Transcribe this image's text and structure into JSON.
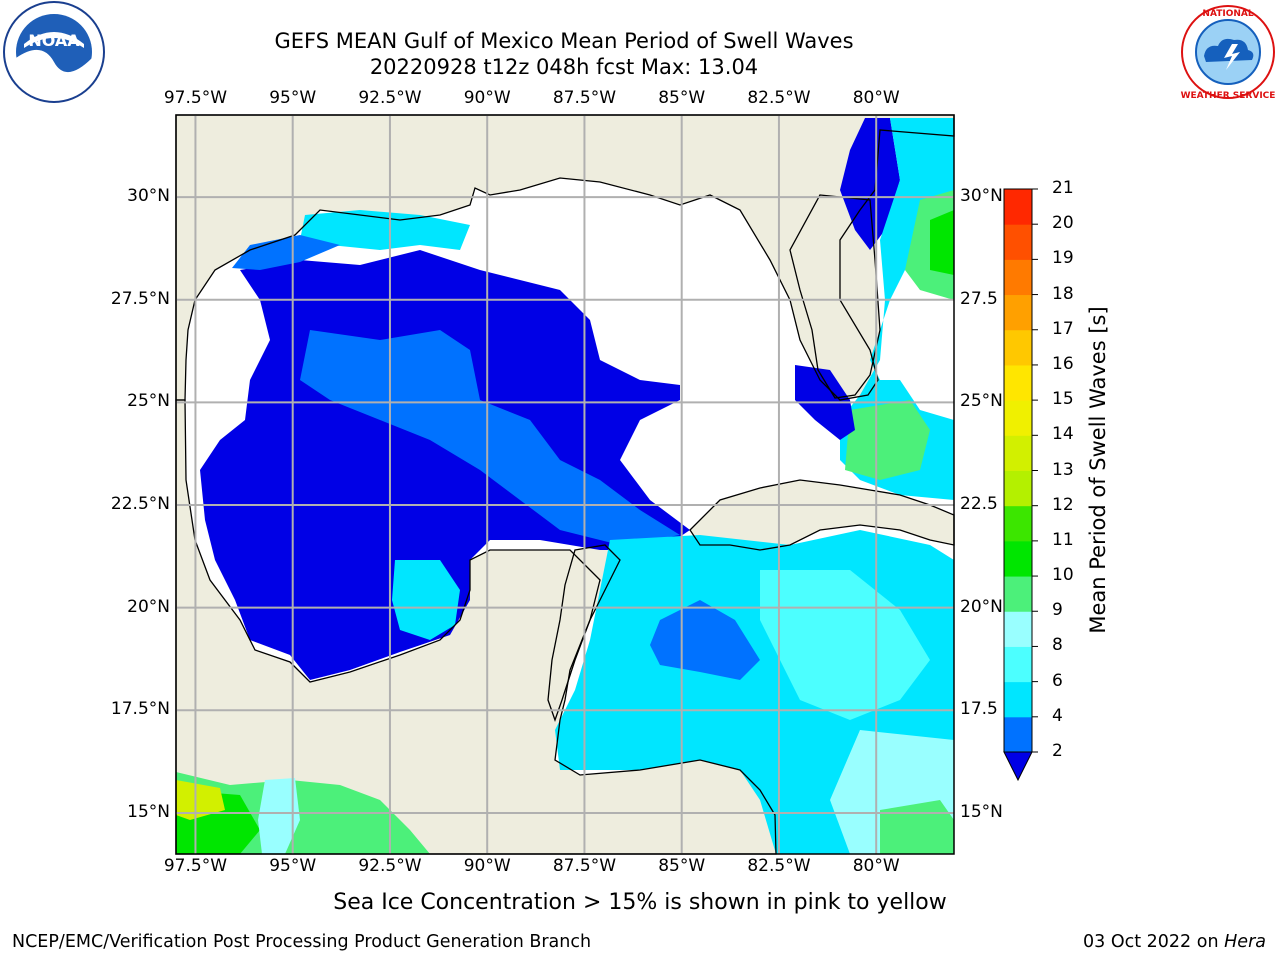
{
  "title": {
    "line1": "GEFS MEAN Gulf of Mexico Mean Period of Swell Waves",
    "line2": "20220928 t12z 048h fcst   Max: 13.04"
  },
  "logos": {
    "left": "noara-logo",
    "right": "national-weather-service-logo",
    "right_text": "NATIONAL WEATHER SERVICE"
  },
  "map": {
    "lon_range": [
      -98,
      -78
    ],
    "lat_range": [
      14,
      32
    ],
    "lon_labels": [
      "97.5°W",
      "95°W",
      "92.5°W",
      "90°W",
      "87.5°W",
      "85°W",
      "82.5°W",
      "80°W"
    ],
    "lat_labels_left": [
      "30°N",
      "27.5°N",
      "25°N",
      "22.5°N",
      "20°N",
      "17.5°N",
      "15°N"
    ],
    "lat_labels_right": [
      "30°N",
      "27.5",
      "25°N",
      "22.5",
      "20°N",
      "17.5",
      "15°N"
    ],
    "land_color": "#eeedde",
    "nodata_color": "#ffffff",
    "grid_color": "#b0b0b0"
  },
  "colorbar": {
    "label": "Mean Period of Swell Waves [s]",
    "ticks": [
      "2",
      "4",
      "6",
      "8",
      "9",
      "10",
      "11",
      "12",
      "13",
      "14",
      "15",
      "16",
      "17",
      "18",
      "19",
      "20",
      "21"
    ],
    "colors": [
      "#0072ff",
      "#00e6ff",
      "#4cffff",
      "#99ffff",
      "#4cf07a",
      "#00e600",
      "#3ce600",
      "#b4f000",
      "#d2f000",
      "#f0f000",
      "#ffe600",
      "#ffc800",
      "#ffa000",
      "#ff7a00",
      "#ff5000",
      "#ff2800",
      "#ff0000"
    ],
    "below_color": "#0000e6",
    "extend": "min"
  },
  "footnote": "Sea Ice Concentration > 15% is shown in pink to yellow",
  "credit_left": "NCEP/EMC/Verification Post Processing Product Generation Branch",
  "credit_right_date": "03 Oct 2022 on",
  "credit_right_host": "Hera"
}
